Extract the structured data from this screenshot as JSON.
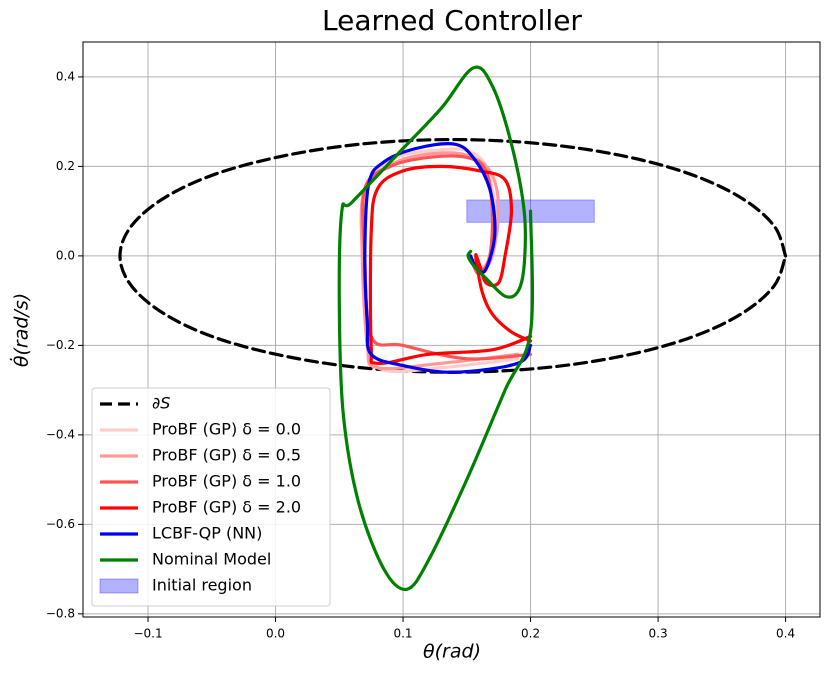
{
  "chart_data": {
    "type": "line",
    "title": "Learned Controller",
    "x_label": "θ(rad)",
    "y_label": "θ̇(rad/s)",
    "xlim": [
      -0.151,
      0.427
    ],
    "ylim": [
      -0.807,
      0.478
    ],
    "xticks": [
      {
        "value": -0.1,
        "label": "−0.1"
      },
      {
        "value": 0,
        "label": "0.0"
      },
      0.1,
      0.2,
      0.3,
      0.4
    ],
    "yticks": [
      {
        "value": -0.8,
        "label": "−0.8"
      },
      {
        "value": -0.6,
        "label": "−0.6"
      },
      {
        "value": -0.4,
        "label": "−0.4"
      },
      {
        "value": -0.2,
        "label": "−0.2"
      },
      {
        "value": 0,
        "label": "0.0"
      },
      0.2,
      0.4
    ],
    "grid": true,
    "legend_position": "lower left",
    "series": [
      {
        "name": "∂S",
        "color": "#000000",
        "linestyle": "dashed",
        "x": [
          0.4,
          0.391,
          0.365,
          0.324,
          0.27,
          0.207,
          0.139,
          0.071,
          0.009,
          -0.046,
          -0.087,
          -0.113,
          -0.122,
          -0.113,
          -0.087,
          -0.046,
          0.009,
          0.071,
          0.139,
          0.207,
          0.27,
          0.324,
          0.365,
          0.391,
          0.4
        ],
        "y": [
          0,
          0.067,
          0.13,
          0.184,
          0.225,
          0.251,
          0.26,
          0.251,
          0.225,
          0.184,
          0.13,
          0.067,
          0,
          -0.067,
          -0.13,
          -0.184,
          -0.225,
          -0.251,
          -0.26,
          -0.251,
          -0.225,
          -0.184,
          -0.13,
          -0.067,
          0
        ]
      },
      {
        "name": "ProBF (GP) δ = 0.0",
        "color": "#ffcccc",
        "x": [
          0.19,
          0.13,
          0.085,
          0.074,
          0.07,
          0.072,
          0.095,
          0.13,
          0.15,
          0.165,
          0.172,
          0.168,
          0.16,
          0.155
        ],
        "y": [
          -0.23,
          -0.25,
          -0.255,
          -0.2,
          0.0,
          0.16,
          0.22,
          0.237,
          0.235,
          0.2,
          0.1,
          0.0,
          -0.03,
          -0.01
        ]
      },
      {
        "name": "ProBF (GP) δ = 0.5",
        "color": "#ff9999",
        "x": [
          0.19,
          0.13,
          0.08,
          0.072,
          0.068,
          0.07,
          0.095,
          0.13,
          0.155,
          0.17,
          0.175,
          0.17,
          0.162,
          0.156
        ],
        "y": [
          -0.22,
          -0.24,
          -0.25,
          -0.2,
          0.0,
          0.15,
          0.21,
          0.23,
          0.22,
          0.18,
          0.1,
          0.0,
          -0.03,
          -0.01
        ]
      },
      {
        "name": "ProBF (GP) δ = 1.0",
        "color": "#ff5555",
        "x": [
          0.2,
          0.15,
          0.1,
          0.075,
          0.07,
          0.07,
          0.09,
          0.12,
          0.15,
          0.165,
          0.17,
          0.168,
          0.16,
          0.155
        ],
        "y": [
          -0.22,
          -0.23,
          -0.2,
          -0.18,
          0.0,
          0.15,
          0.2,
          0.22,
          0.22,
          0.19,
          0.1,
          0.0,
          -0.04,
          -0.02
        ]
      },
      {
        "name": "ProBF (GP) δ = 2.0",
        "color": "#ff0000",
        "x": [
          0.2,
          0.17,
          0.12,
          0.08,
          0.075,
          0.075,
          0.08,
          0.1,
          0.13,
          0.16,
          0.18,
          0.185,
          0.18,
          0.175,
          0.165,
          0.16,
          0.157,
          0.162,
          0.17,
          0.185,
          0.2
        ],
        "y": [
          -0.18,
          -0.21,
          -0.22,
          -0.24,
          -0.2,
          0.05,
          0.15,
          0.19,
          0.2,
          0.19,
          0.17,
          0.1,
          0.0,
          -0.06,
          -0.06,
          -0.02,
          0.0,
          -0.08,
          -0.13,
          -0.17,
          -0.19
        ]
      },
      {
        "name": "LCBF-QP (NN)",
        "color": "#0000ee",
        "x": [
          0.153,
          0.158,
          0.165,
          0.172,
          0.168,
          0.155,
          0.14,
          0.11,
          0.085,
          0.073,
          0.07,
          0.072,
          0.075,
          0.1,
          0.14,
          0.19,
          0.2
        ],
        "y": [
          0.0,
          -0.03,
          -0.03,
          0.05,
          0.15,
          0.22,
          0.25,
          0.24,
          0.21,
          0.16,
          0.0,
          -0.15,
          -0.22,
          -0.245,
          -0.26,
          -0.24,
          -0.2
        ]
      },
      {
        "name": "Nominal Model",
        "color": "#008000",
        "x": [
          0.2,
          0.2,
          0.18,
          0.15,
          0.12,
          0.103,
          0.085,
          0.065,
          0.053,
          0.05,
          0.052,
          0.06,
          0.1,
          0.13,
          0.155,
          0.17,
          0.185,
          0.195,
          0.195,
          0.19,
          0.18,
          0.165,
          0.155,
          0.151,
          0.153
        ],
        "y": [
          0.1,
          -0.17,
          -0.3,
          -0.5,
          -0.68,
          -0.745,
          -0.7,
          -0.55,
          -0.35,
          -0.1,
          0.1,
          0.12,
          0.24,
          0.33,
          0.42,
          0.38,
          0.25,
          0.1,
          -0.02,
          -0.08,
          -0.09,
          -0.05,
          -0.02,
          0.0,
          0.01
        ]
      }
    ],
    "region": {
      "name": "Initial region",
      "color": "#0000ff",
      "x": [
        0.15,
        0.25
      ],
      "y": [
        0.075,
        0.125
      ]
    }
  }
}
